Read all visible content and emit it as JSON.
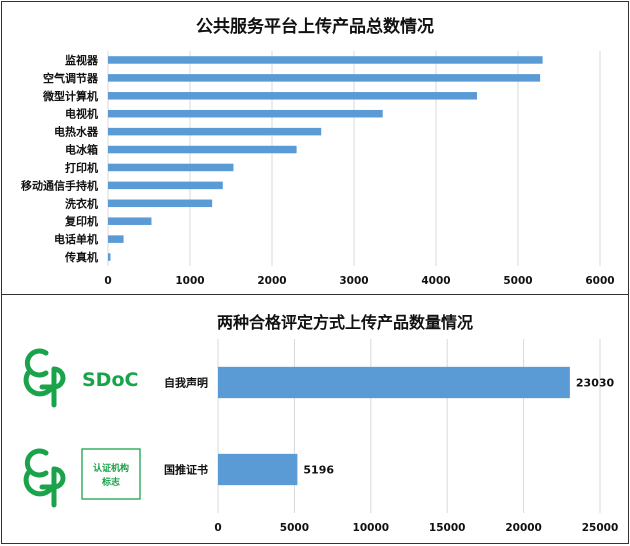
{
  "colors": {
    "bar": "#5b9bd5",
    "grid": "#d9d9d9",
    "logo_green": "#1aa34a"
  },
  "chart_data": [
    {
      "type": "bar",
      "orientation": "horizontal",
      "title": "公共服务平台上传产品总数情况",
      "categories": [
        "监视器",
        "空气调节器",
        "微型计算机",
        "电视机",
        "电热水器",
        "电冰箱",
        "打印机",
        "移动通信手持机",
        "洗衣机",
        "复印机",
        "电话单机",
        "传真机"
      ],
      "values": [
        5300,
        5270,
        4500,
        3350,
        2600,
        2300,
        1530,
        1400,
        1270,
        530,
        190,
        30
      ],
      "xlim": [
        0,
        6000
      ],
      "xticks": [
        "0",
        "1000",
        "2000",
        "3000",
        "4000",
        "5000",
        "6000"
      ],
      "grid": true
    },
    {
      "type": "bar",
      "orientation": "horizontal",
      "title": "两种合格评定方式上传产品数量情况",
      "categories": [
        "自我声明",
        "国推证书"
      ],
      "values": [
        23030,
        5196
      ],
      "data_labels": [
        "23030",
        "5196"
      ],
      "xlim": [
        0,
        25000
      ],
      "xticks": [
        "0",
        "5000",
        "10000",
        "15000",
        "20000",
        "25000"
      ],
      "grid": true
    }
  ],
  "logos": {
    "sdoc_text": "SDoC",
    "stamp_text_line1": "认证机构",
    "stamp_text_line2": "标志"
  }
}
